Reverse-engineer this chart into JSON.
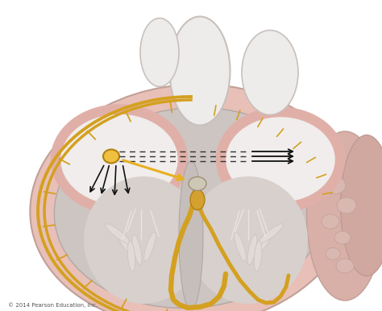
{
  "background_color": "#ffffff",
  "fig_width": 4.74,
  "fig_height": 3.86,
  "dpi": 100,
  "copyright_text": "© 2014 Pearson Education, Inc.",
  "copyright_fontsize": 5,
  "copyright_color": "#555555",
  "pink_outer": "#e8c0b8",
  "sa_node_color": "#f0c040",
  "bundle_color": "#d4a020",
  "arrow_black": "#111111",
  "arrow_yellow": "#e8b020"
}
